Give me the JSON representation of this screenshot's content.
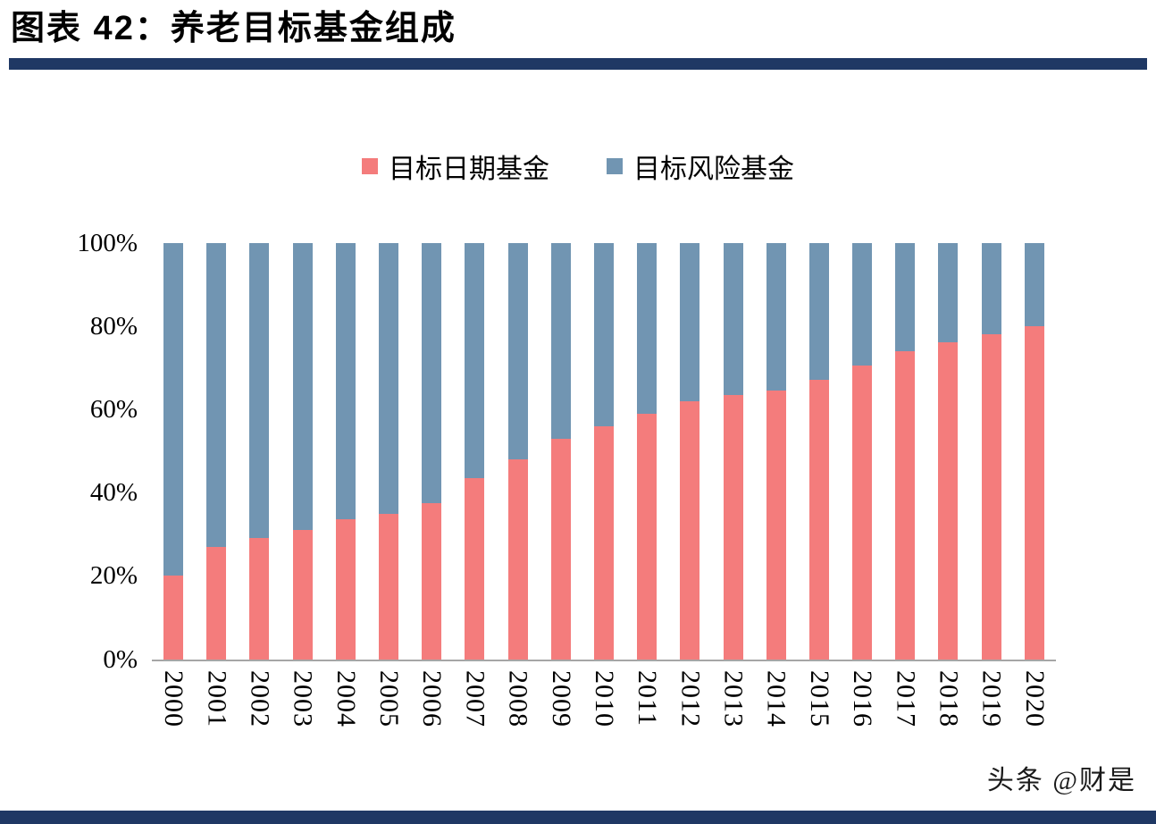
{
  "header": {
    "title": "图表 42：养老目标基金组成"
  },
  "legend": [
    {
      "label": "目标日期基金",
      "color": "#F47C7C"
    },
    {
      "label": "目标风险基金",
      "color": "#7195B2"
    }
  ],
  "watermark": "头条 @财是",
  "colors": {
    "accent_navy": "#1F3864",
    "axis_line": "#A6A6A6",
    "target_date_red": "#F47C7C",
    "target_risk_blue": "#7195B2"
  },
  "chart_data": {
    "type": "bar",
    "stacked": true,
    "unit": "%",
    "title": "养老目标基金组成",
    "legend_position": "top",
    "grid": false,
    "ylim": [
      0,
      100
    ],
    "yticks": [
      "0%",
      "20%",
      "40%",
      "60%",
      "80%",
      "100%"
    ],
    "categories": [
      "2000",
      "2001",
      "2002",
      "2003",
      "2004",
      "2005",
      "2006",
      "2007",
      "2008",
      "2009",
      "2010",
      "2011",
      "2012",
      "2013",
      "2014",
      "2015",
      "2016",
      "2017",
      "2018",
      "2019",
      "2020"
    ],
    "series": [
      {
        "name": "目标日期基金",
        "color": "#F47C7C",
        "values": [
          20,
          27,
          29,
          31,
          33.5,
          35,
          37.5,
          43.5,
          48,
          53,
          56,
          59,
          62,
          63.5,
          64.5,
          67,
          70.5,
          74,
          76,
          78,
          80
        ]
      },
      {
        "name": "目标风险基金",
        "color": "#7195B2",
        "values": [
          80,
          73,
          71,
          69,
          66.5,
          65,
          62.5,
          56.5,
          52,
          47,
          44,
          41,
          38,
          36.5,
          35.5,
          33,
          29.5,
          26,
          24,
          22,
          20
        ]
      }
    ]
  }
}
